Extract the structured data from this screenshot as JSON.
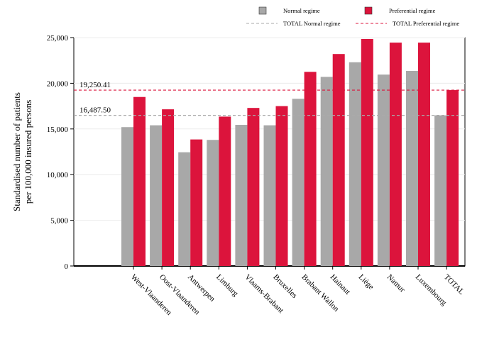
{
  "chart_data": {
    "type": "bar",
    "ylabel_lines": [
      "Standardised number of patients",
      "per 100,000 insured persons"
    ],
    "xlabel": "",
    "ylim": [
      0,
      25000
    ],
    "yticks": [
      0,
      5000,
      10000,
      15000,
      20000,
      25000
    ],
    "ytick_labels": [
      "0",
      "5,000",
      "10,000",
      "15,000",
      "20,000",
      "25,000"
    ],
    "grid": true,
    "legend_position": "top-right",
    "categories": [
      "West-Vlaanderen",
      "Oost-Vlaanderen",
      "Antwerpen",
      "Limburg",
      "Vlaams-Brabant",
      "Bruxelles",
      "Brabant Wallon",
      "Hainaut",
      "Liège",
      "Namur",
      "Luxembourg",
      "TOTAL"
    ],
    "series": [
      {
        "name": "Normal regime",
        "color": "#a8a8a8",
        "values": [
          15200,
          15400,
          12450,
          13800,
          15450,
          15400,
          18300,
          20700,
          22300,
          20950,
          21350,
          16487.5
        ]
      },
      {
        "name": "Preferential regime",
        "color": "#dc143c",
        "values": [
          18500,
          17150,
          13850,
          16350,
          17300,
          17500,
          21250,
          23200,
          24850,
          24450,
          24450,
          19250.41
        ]
      }
    ],
    "reference_lines": [
      {
        "name": "TOTAL Normal regime",
        "value": 16487.5,
        "label": "16,487.50",
        "color": "#aaaaaa"
      },
      {
        "name": "TOTAL Preferential regime",
        "value": 19250.41,
        "label": "19,250.41",
        "color": "#dc143c"
      }
    ]
  }
}
